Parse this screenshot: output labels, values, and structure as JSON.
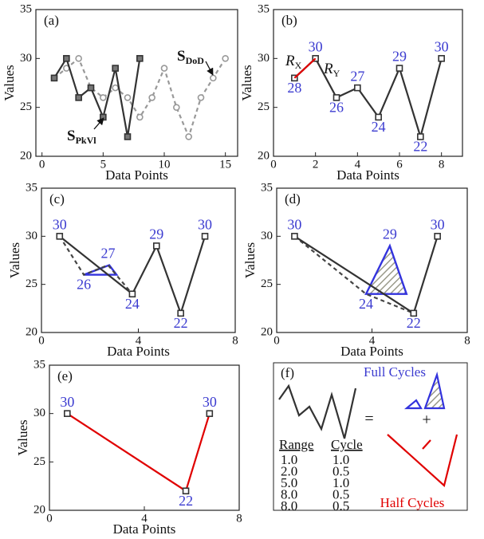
{
  "chart_data": [
    {
      "type": "line",
      "label": "(a)",
      "xlabel": "Data Points",
      "ylabel": "Values",
      "xlim": [
        -0.5,
        16
      ],
      "xticks": [
        0,
        5,
        10,
        15
      ],
      "ylim": [
        20,
        35
      ],
      "yticks": [
        20,
        25,
        30,
        35
      ],
      "series": [
        {
          "color": "#999999",
          "dash": true,
          "marker": "circle",
          "marker_fill": "#ffffff",
          "x": [
            1,
            2,
            3,
            4,
            5,
            6,
            7,
            8,
            9,
            10,
            11,
            12,
            13,
            14,
            15
          ],
          "values": [
            28,
            29,
            30,
            27,
            26,
            27,
            26,
            24,
            26,
            29,
            25,
            22,
            26,
            28,
            30
          ]
        },
        {
          "color": "#333333",
          "marker": "square",
          "marker_fill": "#777777",
          "x": [
            1,
            2,
            3,
            4,
            5,
            6,
            7,
            8
          ],
          "values": [
            28,
            30,
            26,
            27,
            24,
            29,
            22,
            30
          ]
        }
      ],
      "annotations": [
        {
          "text": "S",
          "sub": "PkVl"
        },
        {
          "text": "S",
          "sub": "DoD"
        }
      ]
    },
    {
      "type": "line",
      "label": "(b)",
      "xlabel": "Data Points",
      "ylabel": "Values",
      "xlim": [
        0,
        9
      ],
      "xticks": [
        0,
        2,
        4,
        6,
        8
      ],
      "ylim": [
        20,
        35
      ],
      "yticks": [
        20,
        25,
        30,
        35
      ],
      "series": [
        {
          "color": "#333333",
          "marker": "square",
          "marker_fill": "#ffffff",
          "point_labels": true,
          "x": [
            1,
            2,
            3,
            4,
            5,
            6,
            7,
            8
          ],
          "values": [
            28,
            30,
            26,
            27,
            24,
            29,
            22,
            30
          ]
        },
        {
          "color": "#e00000",
          "x": [
            1,
            2
          ],
          "values": [
            28,
            30
          ]
        }
      ],
      "annotations": [
        {
          "text": "R",
          "sub": "X",
          "italic": true
        },
        {
          "text": "R",
          "sub": "Y",
          "italic": true
        }
      ]
    },
    {
      "type": "line",
      "label": "(c)",
      "xlabel": "Data Points",
      "ylabel": "Values",
      "xlim": [
        0,
        8
      ],
      "xticks": [
        0,
        4,
        8
      ],
      "ylim": [
        20,
        35
      ],
      "yticks": [
        20,
        25,
        30,
        35
      ],
      "polygons": [
        {
          "color": "#3333dd",
          "x": [
            1.75,
            2.8,
            3.1
          ],
          "values": [
            26,
            27,
            26
          ]
        }
      ],
      "series": [
        {
          "color": "#444444",
          "dash": true,
          "x": [
            0.75,
            1.75,
            2.75,
            3.75
          ],
          "values": [
            30,
            26,
            27,
            24
          ],
          "value_labels": [
            null,
            "26",
            "27",
            null
          ]
        },
        {
          "color": "#333333",
          "marker": "square",
          "marker_fill": "#ffffff",
          "point_labels": true,
          "x": [
            0.75,
            3.75,
            4.75,
            5.75,
            6.75
          ],
          "values": [
            30,
            24,
            29,
            22,
            30
          ]
        }
      ]
    },
    {
      "type": "line",
      "label": "(d)",
      "xlabel": "Data Points",
      "ylabel": "Values",
      "xlim": [
        0,
        8
      ],
      "xticks": [
        0,
        4,
        8
      ],
      "ylim": [
        20,
        35
      ],
      "yticks": [
        20,
        25,
        30,
        35
      ],
      "polygons": [
        {
          "color": "#3333dd",
          "hatch": true,
          "x": [
            3.75,
            4.75,
            5.45
          ],
          "values": [
            24,
            29,
            24
          ],
          "value_labels": [
            null,
            "29",
            null
          ]
        }
      ],
      "series": [
        {
          "color": "#444444",
          "dash": true,
          "x": [
            0.75,
            3.75,
            5.75
          ],
          "values": [
            30,
            24,
            22
          ],
          "value_labels": [
            null,
            "24",
            null
          ]
        },
        {
          "color": "#333333",
          "marker": "square",
          "marker_fill": "#ffffff",
          "point_labels": true,
          "x": [
            0.75,
            5.75,
            6.75
          ],
          "values": [
            30,
            22,
            30
          ]
        }
      ]
    },
    {
      "type": "line",
      "label": "(e)",
      "xlabel": "Data Points",
      "ylabel": "Values",
      "xlim": [
        0,
        8
      ],
      "xticks": [
        0,
        4,
        8
      ],
      "ylim": [
        20,
        35
      ],
      "yticks": [
        20,
        25,
        30,
        35
      ],
      "series": [
        {
          "color": "#e00000",
          "marker": "square",
          "marker_fill": "#ffffff",
          "marker_color": "#333333",
          "point_labels": true,
          "x": [
            0.75,
            5.75,
            6.75
          ],
          "values": [
            30,
            22,
            30
          ]
        }
      ]
    }
  ],
  "panel_f": {
    "label": "(f)",
    "full_cycles": "Full Cycles",
    "half_cycles": "Half Cycles",
    "equals": "=",
    "plus": "+",
    "table": {
      "header": [
        "Range",
        "Cycle"
      ],
      "rows": [
        [
          "1.0",
          "1.0"
        ],
        [
          "2.0",
          "0.5"
        ],
        [
          "5.0",
          "1.0"
        ],
        [
          "8.0",
          "0.5"
        ],
        [
          "8.0",
          "0.5"
        ]
      ]
    }
  }
}
